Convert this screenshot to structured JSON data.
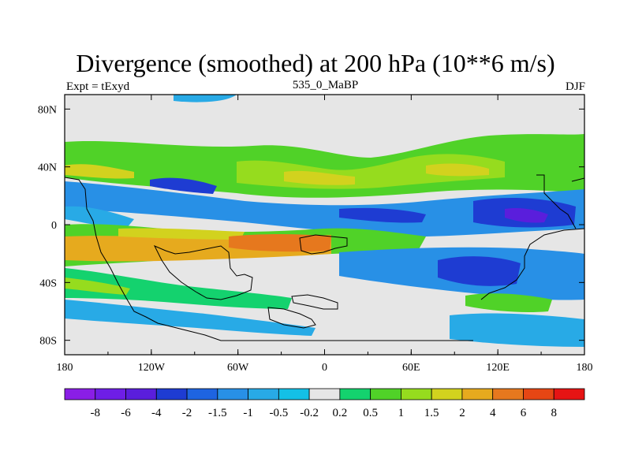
{
  "chart_data": {
    "type": "contour-map",
    "title": "Divergence (smoothed) at 200 hPa (10**6 m/s)",
    "subtitle_left": "Expt = tExyd",
    "subtitle_center": "535_0_MaBP",
    "subtitle_right": "DJF",
    "x_ticks": [
      "180",
      "120W",
      "60W",
      "0",
      "60E",
      "120E",
      "180"
    ],
    "y_ticks": [
      "80N",
      "40N",
      "0",
      "40S",
      "80S"
    ],
    "x_range": [
      -180,
      180
    ],
    "y_range": [
      -90,
      90
    ],
    "colorbar_levels": [
      "-8",
      "-6",
      "-4",
      "-2",
      "-1.5",
      "-1",
      "-0.5",
      "-0.2",
      "0.2",
      "0.5",
      "1",
      "1.5",
      "2",
      "4",
      "6",
      "8"
    ],
    "colorbar_colors": [
      "#8a1ee6",
      "#6e1ee6",
      "#5a1edc",
      "#1e3cd2",
      "#1e64e1",
      "#2890e6",
      "#28aae6",
      "#14c0e6",
      "#e6e6e6",
      "#14d26e",
      "#50d228",
      "#96dc1e",
      "#d2d21e",
      "#e6aa1e",
      "#e6781e",
      "#e64614",
      "#e61414"
    ]
  }
}
